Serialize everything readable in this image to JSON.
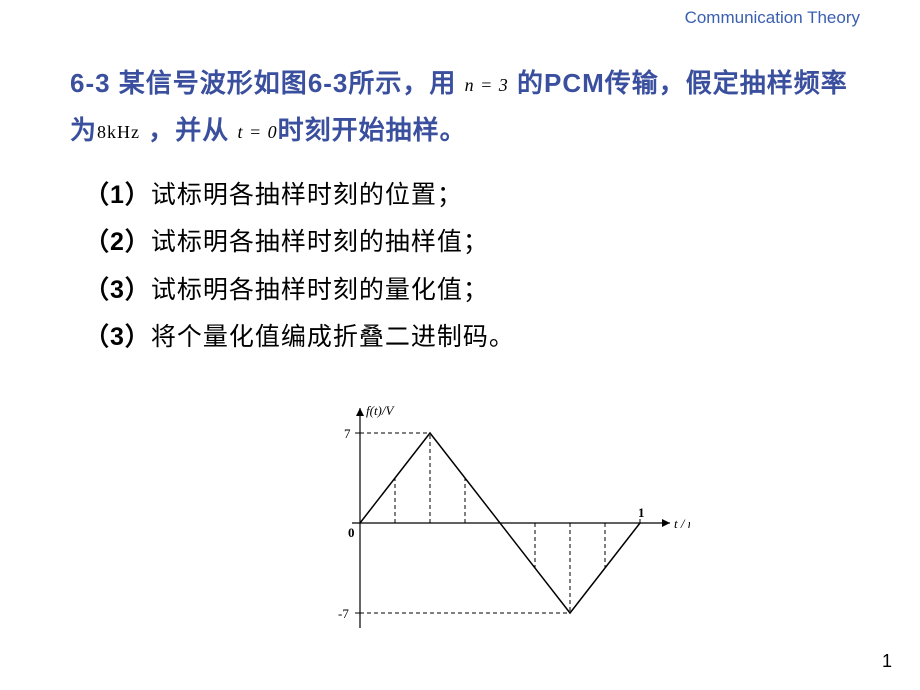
{
  "header": {
    "title": "Communication Theory"
  },
  "problem": {
    "number": "6-3",
    "text_part1": " 某信号波形如图",
    "fig_ref": "6-3",
    "text_part2": "所示，用 ",
    "formula_n": "n = 3",
    "text_part3": " 的",
    "pcm": "PCM",
    "text_part4": "传输，假定抽样频率为",
    "formula_freq": "8kHz",
    "text_part5": " ，并从 ",
    "formula_t": "t = 0",
    "text_part6": "时刻开始抽样。"
  },
  "items": [
    {
      "num": "（1）",
      "text": "试标明各抽样时刻的位置；"
    },
    {
      "num": "（2）",
      "text": "试标明各抽样时刻的抽样值；"
    },
    {
      "num": "（3）",
      "text": "试标明各抽样时刻的量化值；"
    },
    {
      "num": "（3）",
      "text": "将个量化值编成折叠二进制码。"
    }
  ],
  "chart": {
    "type": "line",
    "ylabel": "f(t)/V",
    "xlabel": "t / ms",
    "ymax_label": "7",
    "ymin_label": "-7",
    "origin_label": "0",
    "xmax_label": "1",
    "axis_color": "#000000",
    "line_color": "#000000",
    "dash_color": "#000000",
    "background_color": "#ffffff",
    "x_range": [
      0,
      1
    ],
    "y_range": [
      -7,
      7
    ],
    "waveform_points": [
      [
        0,
        0
      ],
      [
        0.25,
        7
      ],
      [
        0.75,
        -7
      ],
      [
        1,
        0
      ]
    ],
    "sample_x": [
      0.125,
      0.25,
      0.375,
      0.5,
      0.625,
      0.75,
      0.875
    ],
    "line_width": 1.2,
    "dash_pattern": "4,3"
  },
  "page_number": "1",
  "colors": {
    "title_color": "#3a4f9e",
    "header_color": "#3a5fb0",
    "text_color": "#000000"
  }
}
